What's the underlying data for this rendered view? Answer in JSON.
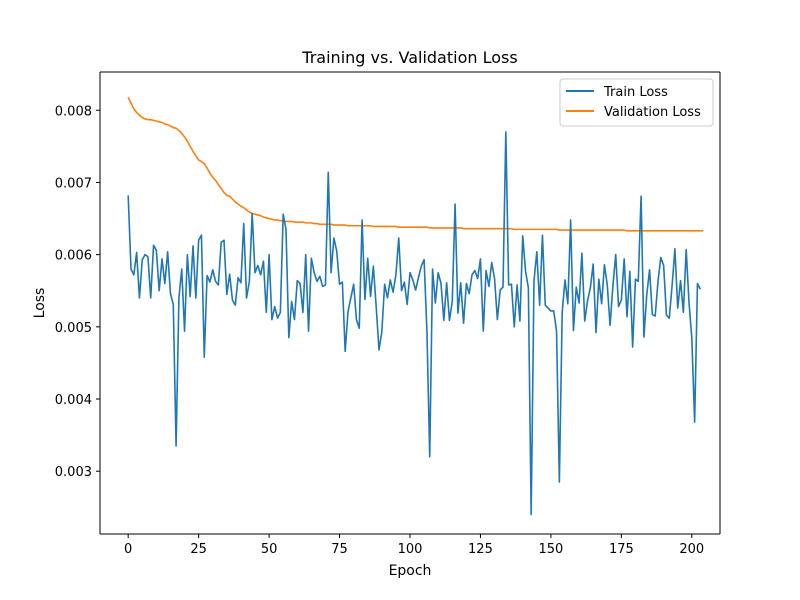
{
  "chart_data": {
    "type": "line",
    "title": "Training vs. Validation Loss",
    "xlabel": "Epoch",
    "ylabel": "Loss",
    "xlim": [
      -10,
      210
    ],
    "ylim": [
      0.00213,
      0.00853
    ],
    "xticks": [
      0,
      25,
      50,
      75,
      100,
      125,
      150,
      175,
      200
    ],
    "yticks": [
      0.003,
      0.004,
      0.005,
      0.006,
      0.007,
      0.008
    ],
    "ytick_labels": [
      "0.003",
      "0.004",
      "0.005",
      "0.006",
      "0.007",
      "0.008"
    ],
    "grid": false,
    "legend_position": "top-right",
    "series": [
      {
        "name": "Train Loss",
        "color": "#1f77b4",
        "values": [
          0.00682,
          0.0058,
          0.00572,
          0.00603,
          0.0054,
          0.00593,
          0.006,
          0.00597,
          0.0054,
          0.00613,
          0.00606,
          0.0055,
          0.00594,
          0.0056,
          0.00604,
          0.00546,
          0.00531,
          0.00335,
          0.0054,
          0.0058,
          0.00494,
          0.006,
          0.00542,
          0.00612,
          0.0054,
          0.0062,
          0.00627,
          0.00458,
          0.00571,
          0.00562,
          0.00579,
          0.00563,
          0.00558,
          0.00617,
          0.0062,
          0.00545,
          0.00573,
          0.00537,
          0.0053,
          0.00568,
          0.00561,
          0.00643,
          0.0054,
          0.00563,
          0.00657,
          0.00575,
          0.00585,
          0.00572,
          0.00591,
          0.0052,
          0.006,
          0.0051,
          0.00528,
          0.00512,
          0.0052,
          0.00656,
          0.00635,
          0.00485,
          0.00535,
          0.0051,
          0.00564,
          0.0056,
          0.0052,
          0.006,
          0.00494,
          0.00595,
          0.00575,
          0.00563,
          0.0057,
          0.00556,
          0.00558,
          0.00714,
          0.00575,
          0.00623,
          0.00605,
          0.00559,
          0.00562,
          0.00466,
          0.00521,
          0.0054,
          0.00559,
          0.0051,
          0.00498,
          0.00648,
          0.00538,
          0.00595,
          0.00542,
          0.00584,
          0.00528,
          0.00468,
          0.00493,
          0.00559,
          0.0054,
          0.00565,
          0.00548,
          0.00572,
          0.00623,
          0.0055,
          0.00562,
          0.00531,
          0.00575,
          0.00565,
          0.00551,
          0.00568,
          0.00584,
          0.00593,
          0.00495,
          0.0032,
          0.0058,
          0.00533,
          0.00575,
          0.0056,
          0.00509,
          0.00561,
          0.00509,
          0.00535,
          0.0067,
          0.00519,
          0.00561,
          0.00505,
          0.0056,
          0.00546,
          0.00572,
          0.00578,
          0.00567,
          0.00594,
          0.00494,
          0.00578,
          0.00556,
          0.00589,
          0.00567,
          0.0051,
          0.00551,
          0.00555,
          0.0077,
          0.00558,
          0.00559,
          0.005,
          0.00558,
          0.00508,
          0.00626,
          0.00577,
          0.00554,
          0.0024,
          0.00564,
          0.00604,
          0.0053,
          0.00627,
          0.0053,
          0.00526,
          0.00522,
          0.00522,
          0.00494,
          0.00285,
          0.0052,
          0.00565,
          0.00532,
          0.00648,
          0.00495,
          0.00555,
          0.00533,
          0.00602,
          0.00508,
          0.00536,
          0.00554,
          0.00587,
          0.00492,
          0.00566,
          0.00532,
          0.00586,
          0.00558,
          0.00502,
          0.00557,
          0.006,
          0.00528,
          0.00537,
          0.00594,
          0.00514,
          0.00577,
          0.00472,
          0.00566,
          0.00563,
          0.00681,
          0.00486,
          0.00544,
          0.00579,
          0.00517,
          0.00515,
          0.00563,
          0.00596,
          0.00585,
          0.00516,
          0.00512,
          0.00557,
          0.00608,
          0.00526,
          0.00564,
          0.0052,
          0.00607,
          0.00534,
          0.00484,
          0.00368,
          0.0056,
          0.00552
        ]
      },
      {
        "name": "Validation Loss",
        "color": "#ff7f0e",
        "values": [
          0.00818,
          0.0081,
          0.00802,
          0.00797,
          0.00793,
          0.0079,
          0.00788,
          0.00787,
          0.00787,
          0.00786,
          0.00785,
          0.00784,
          0.00783,
          0.00781,
          0.0078,
          0.00778,
          0.00776,
          0.00775,
          0.00772,
          0.00768,
          0.00763,
          0.00757,
          0.0075,
          0.00743,
          0.00737,
          0.00731,
          0.00729,
          0.00726,
          0.0072,
          0.00713,
          0.00707,
          0.00703,
          0.00697,
          0.00692,
          0.00686,
          0.00682,
          0.00681,
          0.00677,
          0.00673,
          0.0067,
          0.00667,
          0.00665,
          0.00662,
          0.00659,
          0.00657,
          0.00656,
          0.00655,
          0.00654,
          0.00652,
          0.00651,
          0.0065,
          0.00649,
          0.00648,
          0.00648,
          0.00647,
          0.00647,
          0.00646,
          0.00646,
          0.00646,
          0.00645,
          0.00645,
          0.00645,
          0.00645,
          0.00644,
          0.00644,
          0.00644,
          0.00643,
          0.00643,
          0.00642,
          0.00642,
          0.00642,
          0.00642,
          0.00642,
          0.00641,
          0.00641,
          0.00641,
          0.00641,
          0.00641,
          0.0064,
          0.0064,
          0.0064,
          0.0064,
          0.0064,
          0.0064,
          0.0064,
          0.0064,
          0.0064,
          0.00639,
          0.00639,
          0.00639,
          0.00639,
          0.00639,
          0.00639,
          0.00639,
          0.00639,
          0.00639,
          0.00638,
          0.00638,
          0.00638,
          0.00638,
          0.00638,
          0.00638,
          0.00638,
          0.00638,
          0.00638,
          0.00638,
          0.00638,
          0.00637,
          0.00637,
          0.00637,
          0.00637,
          0.00637,
          0.00637,
          0.00637,
          0.00637,
          0.00637,
          0.00637,
          0.00637,
          0.00637,
          0.00636,
          0.00636,
          0.00636,
          0.00636,
          0.00636,
          0.00636,
          0.00636,
          0.00636,
          0.00636,
          0.00636,
          0.00636,
          0.00636,
          0.00636,
          0.00636,
          0.00636,
          0.00636,
          0.00636,
          0.00636,
          0.00635,
          0.00635,
          0.00635,
          0.00635,
          0.00635,
          0.00635,
          0.00635,
          0.00635,
          0.00635,
          0.00635,
          0.00635,
          0.00635,
          0.00635,
          0.00635,
          0.00635,
          0.00635,
          0.00634,
          0.00634,
          0.00634,
          0.00634,
          0.00634,
          0.00634,
          0.00634,
          0.00634,
          0.00634,
          0.00634,
          0.00634,
          0.00634,
          0.00634,
          0.00634,
          0.00634,
          0.00634,
          0.00634,
          0.00634,
          0.00634,
          0.00634,
          0.00634,
          0.00634,
          0.00634,
          0.00634,
          0.00633,
          0.00633,
          0.00633,
          0.00633,
          0.00633,
          0.00633,
          0.00633,
          0.00633,
          0.00633,
          0.00633,
          0.00633,
          0.00633,
          0.00633,
          0.00633,
          0.00633,
          0.00633,
          0.00633,
          0.00633,
          0.00633,
          0.00633,
          0.00633,
          0.00633,
          0.00633,
          0.00633,
          0.00633,
          0.00633,
          0.00633,
          0.00633
        ]
      }
    ]
  }
}
